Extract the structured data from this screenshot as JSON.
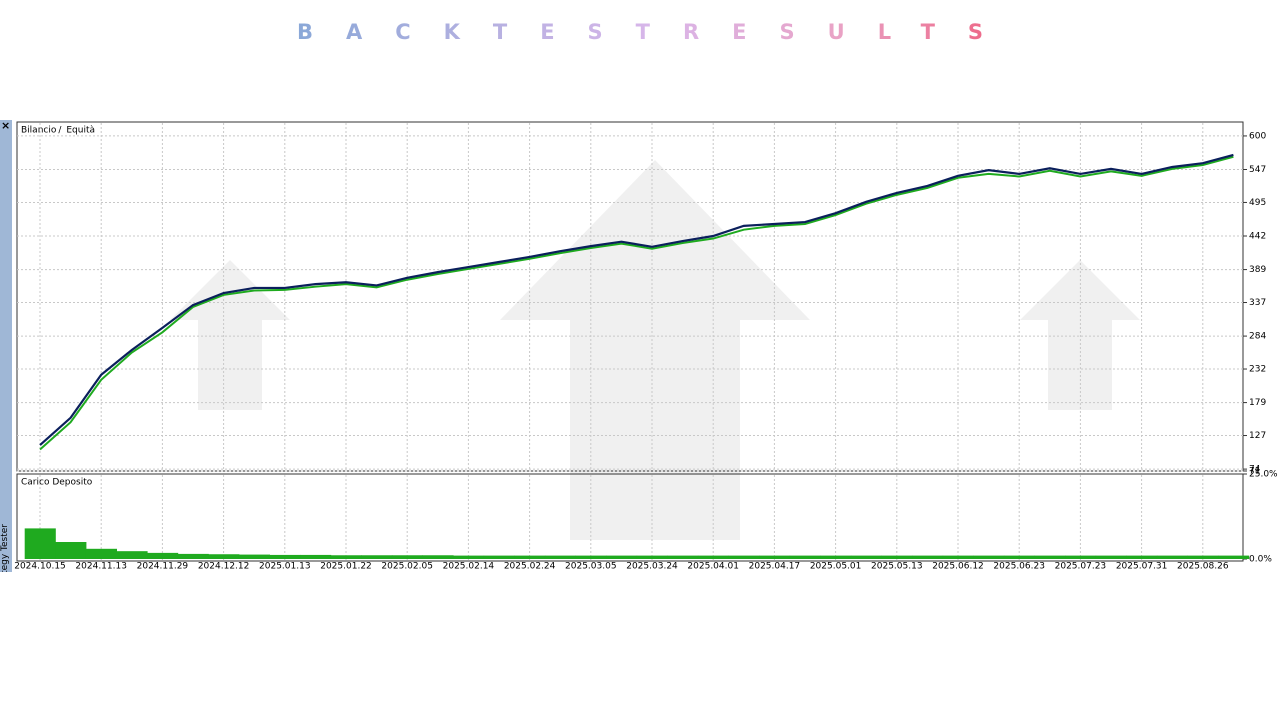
{
  "title": "BACKTESTRESULTS",
  "side_label": "Strategy Tester",
  "chart_data": [
    {
      "type": "line",
      "categories": [
        "2024.10.15",
        null,
        "2024.11.13",
        null,
        "2024.11.29",
        null,
        "2024.12.12",
        null,
        "2025.01.13",
        null,
        "2025.01.22",
        null,
        "2025.02.05",
        null,
        "2025.02.14",
        null,
        "2025.02.24",
        null,
        "2025.03.05",
        null,
        "2025.03.24",
        null,
        "2025.04.01",
        null,
        "2025.04.17",
        null,
        "2025.05.01",
        null,
        "2025.05.13",
        null,
        "2025.06.12",
        null,
        "2025.06.23",
        null,
        "2025.07.23",
        null,
        "2025.07.31",
        null,
        "2025.08.26",
        null
      ],
      "series": [
        {
          "name": "Bilancio",
          "color": "#0b1f5c",
          "values": [
            112,
            155,
            223,
            262,
            297,
            333,
            352,
            360,
            360,
            366,
            369,
            364,
            376,
            385,
            393,
            401,
            409,
            418,
            426,
            433,
            425,
            434,
            442,
            458,
            461,
            464,
            478,
            496,
            510,
            521,
            537,
            546,
            540,
            549,
            540,
            548,
            540,
            551,
            557,
            570
          ]
        },
        {
          "name": "Equità",
          "color": "#1faa1f",
          "values": [
            105,
            148,
            215,
            258,
            290,
            330,
            349,
            356,
            357,
            362,
            366,
            361,
            373,
            382,
            390,
            398,
            406,
            415,
            423,
            430,
            422,
            431,
            438,
            452,
            458,
            461,
            475,
            493,
            507,
            518,
            534,
            540,
            536,
            545,
            536,
            544,
            537,
            548,
            554,
            567
          ]
        }
      ],
      "ylim": [
        71,
        622
      ],
      "yticks": [
        600,
        547,
        495,
        442,
        389,
        337,
        284,
        232,
        179,
        127,
        74,
        71
      ],
      "grid": true
    },
    {
      "type": "bar",
      "title": "Carico Deposito",
      "color": "#1faa1f",
      "values": [
        9,
        5,
        3,
        2.3,
        1.8,
        1.5,
        1.4,
        1.3,
        1.2,
        1.2,
        1.1,
        1.1,
        1.1,
        1.1,
        1,
        1,
        1,
        1,
        1,
        1,
        1,
        1,
        1,
        1,
        1,
        1,
        1,
        1,
        1,
        1,
        1,
        1,
        1,
        1,
        1,
        1,
        1,
        1,
        1,
        1
      ],
      "ylim": [
        0,
        25
      ],
      "yticks": [
        {
          "value": 25,
          "label": "25.0%"
        },
        {
          "value": 0,
          "label": "0.0%"
        }
      ]
    }
  ]
}
